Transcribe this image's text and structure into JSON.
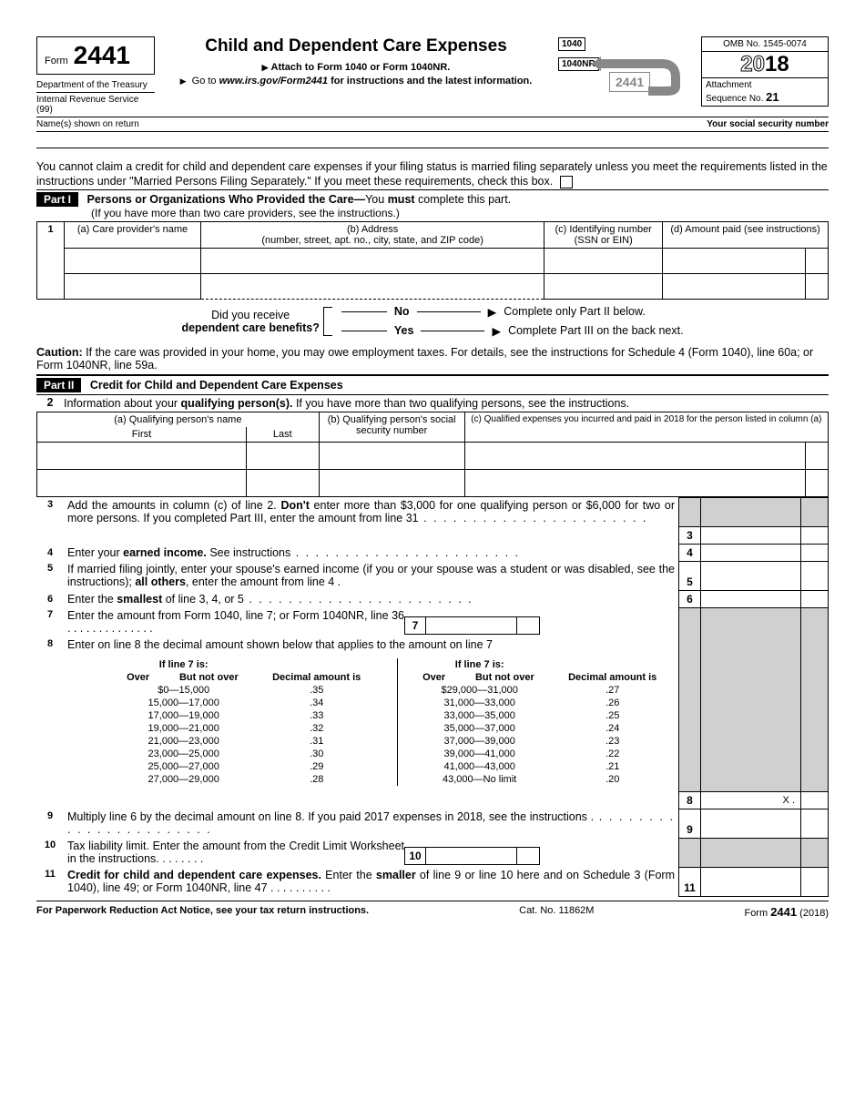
{
  "header": {
    "form_label": "Form",
    "form_number": "2441",
    "dept1": "Department of the Treasury",
    "dept2": "Internal Revenue Service (99)",
    "title": "Child and Dependent Care Expenses",
    "attach": "Attach to Form 1040 or Form 1040NR.",
    "goto_prefix": "Go to ",
    "goto_url": "www.irs.gov/Form2441",
    "goto_suffix": " for instructions and the latest information.",
    "diagram": {
      "b1040": "1040",
      "b1040nr": "1040NR",
      "b2441": "2441"
    },
    "omb": "OMB No. 1545-0074",
    "year_prefix": "20",
    "year_suffix": "18",
    "attachment": "Attachment",
    "seq": "Sequence No. ",
    "seq_no": "21",
    "name_label": "Name(s) shown on return",
    "ssn_label": "Your social security number"
  },
  "intro": "You cannot claim a credit for child and dependent care expenses if your filing status is married filing separately unless you meet the requirements listed in the instructions under \"Married Persons Filing Separately.\" If you meet these requirements, check this box.",
  "part1": {
    "label": "Part I",
    "title_bold": "Persons or Organizations Who Provided the Care—",
    "title_rest": "You ",
    "title_must": "must",
    "title_end": " complete this part.",
    "sub": "(If you have more than two care providers, see the instructions.)",
    "row_num": "1",
    "col_a": "(a) Care provider's name",
    "col_b": "(b) Address",
    "col_b_sub": "(number, street, apt. no., city, state, and ZIP code)",
    "col_c": "(c) Identifying number (SSN or EIN)",
    "col_d": "(d) Amount paid (see instructions)",
    "q1": "Did you receive",
    "q2": "dependent care benefits?",
    "no": "No",
    "yes": "Yes",
    "no_action": "Complete only Part II below.",
    "yes_action": "Complete Part III on the back next.",
    "caution_bold": "Caution:",
    "caution": " If the care was provided in your home, you may owe employment taxes. For details, see the instructions for Schedule 4 (Form 1040), line 60a; or Form 1040NR, line 59a."
  },
  "part2": {
    "label": "Part II",
    "title": "Credit for Child and Dependent Care Expenses",
    "line2_num": "2",
    "line2_pre": "Information about your ",
    "line2_bold": "qualifying person(s).",
    "line2_post": " If you have more than two qualifying persons, see the instructions.",
    "col_a": "(a)  Qualifying person's name",
    "col_a_first": "First",
    "col_a_last": "Last",
    "col_b": "(b)  Qualifying person's social security number",
    "col_c": "(c) Qualified expenses you incurred and paid in 2018 for the person listed in column (a)"
  },
  "lines": {
    "l3": {
      "n": "3",
      "text_pre": "Add the amounts in column (c) of line 2. ",
      "text_bold": "Don't",
      "text_post": " enter more than $3,000 for one qualifying person or $6,000 for two or more persons. If you completed Part III, enter the amount from line 31"
    },
    "l4": {
      "n": "4",
      "text_pre": "Enter your ",
      "text_bold": "earned income.",
      "text_post": " See instructions"
    },
    "l5": {
      "n": "5",
      "text_pre": "If married filing jointly, enter your spouse's earned income (if you or your spouse was a student or was disabled, see the instructions); ",
      "text_bold": "all others",
      "text_post": ", enter the amount from line 4"
    },
    "l6": {
      "n": "6",
      "text_pre": "Enter the ",
      "text_bold": "smallest",
      "text_post": " of line 3, 4, or 5"
    },
    "l7": {
      "n": "7",
      "text": "Enter the amount from Form 1040, line 7; or Form 1040NR, line 36"
    },
    "l8": {
      "n": "8",
      "text": "Enter on line 8 the decimal amount shown below that applies to the amount on line 7",
      "val": "X ."
    },
    "l9": {
      "n": "9",
      "text": "Multiply line 6 by the decimal amount on line 8. If you paid 2017 expenses in 2018, see the instructions"
    },
    "l10": {
      "n": "10",
      "text": "Tax liability limit. Enter the amount from the Credit Limit Worksheet in the instructions."
    },
    "l11": {
      "n": "11",
      "text_bold": "Credit for child and dependent care expenses.",
      "text_mid": " Enter the ",
      "text_bold2": "smaller",
      "text_post": " of line 9 or line 10 here and on Schedule 3 (Form 1040), line 49; or Form 1040NR, line 47"
    }
  },
  "decimal": {
    "h_if": "If line 7 is:",
    "h_over": "Over",
    "h_notover": "But not over",
    "h_amt": "Decimal amount is",
    "left": [
      [
        "$0—15,000",
        ".35"
      ],
      [
        "15,000—17,000",
        ".34"
      ],
      [
        "17,000—19,000",
        ".33"
      ],
      [
        "19,000—21,000",
        ".32"
      ],
      [
        "21,000—23,000",
        ".31"
      ],
      [
        "23,000—25,000",
        ".30"
      ],
      [
        "25,000—27,000",
        ".29"
      ],
      [
        "27,000—29,000",
        ".28"
      ]
    ],
    "right": [
      [
        "$29,000—31,000",
        ".27"
      ],
      [
        "31,000—33,000",
        ".26"
      ],
      [
        "33,000—35,000",
        ".25"
      ],
      [
        "35,000—37,000",
        ".24"
      ],
      [
        "37,000—39,000",
        ".23"
      ],
      [
        "39,000—41,000",
        ".22"
      ],
      [
        "41,000—43,000",
        ".21"
      ],
      [
        "43,000—No limit",
        ".20"
      ]
    ]
  },
  "footer": {
    "left": "For Paperwork Reduction Act Notice, see your tax return instructions.",
    "mid": "Cat. No. 11862M",
    "right_pre": "Form ",
    "right_num": "2441",
    "right_year": " (2018)"
  }
}
